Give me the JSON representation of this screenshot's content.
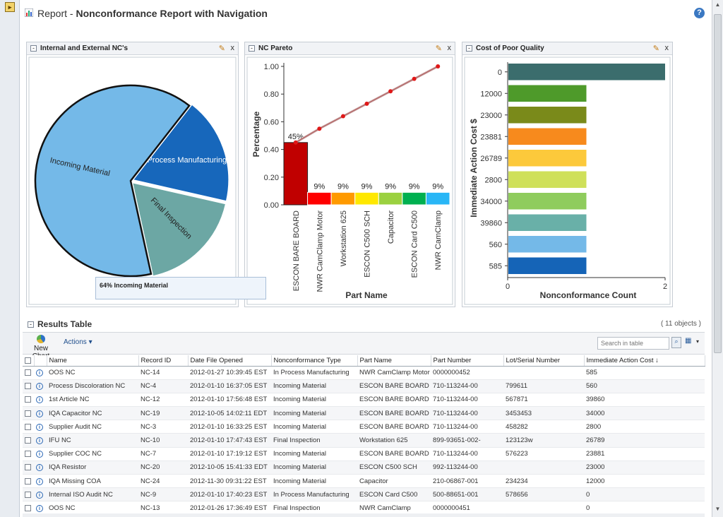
{
  "page": {
    "title_prefix": "Report - ",
    "title_main": "Nonconformance Report with Navigation",
    "help_glyph": "?"
  },
  "panels": {
    "pie": {
      "title": "Internal and External NC's",
      "tooltip": "64% Incoming Material"
    },
    "pareto": {
      "title": "NC Pareto"
    },
    "cost": {
      "title": "Cost of Poor Quality"
    },
    "edit_glyph": "✎",
    "close_glyph": "x"
  },
  "chart_data": [
    {
      "type": "pie",
      "title": "Internal and External NC's",
      "slices": [
        {
          "label": "Incoming Material",
          "value": 64,
          "color": "#74b9e8"
        },
        {
          "label": "In Process Manufacturing",
          "value": 18,
          "color": "#1767bb"
        },
        {
          "label": "Final Inspection",
          "value": 18,
          "color": "#6ca7a4"
        }
      ]
    },
    {
      "type": "bar",
      "title": "NC Pareto",
      "xlabel": "Part Name",
      "ylabel": "Percentage",
      "ylim": [
        0,
        1.0
      ],
      "yticks": [
        "0.00",
        "0.20",
        "0.40",
        "0.60",
        "0.80",
        "1.00"
      ],
      "categories": [
        "ESCON BARE BOARD",
        "NWR CamClamp Motor",
        "Workstation 625",
        "ESCON C500 SCH",
        "Capacitor",
        "ESCON Card C500",
        "NWR CamClamp"
      ],
      "values": [
        0.45,
        0.09,
        0.09,
        0.09,
        0.09,
        0.09,
        0.09
      ],
      "data_labels": [
        "45%",
        "9%",
        "9%",
        "9%",
        "9%",
        "9%",
        "9%"
      ],
      "colors": [
        "#c00000",
        "#ff0000",
        "#ff9a00",
        "#ffe800",
        "#9bd140",
        "#00b050",
        "#29b6f6"
      ],
      "cumulative": [
        0.45,
        0.55,
        0.64,
        0.73,
        0.82,
        0.91,
        1.0
      ]
    },
    {
      "type": "bar",
      "orientation": "horizontal",
      "title": "Cost of Poor Quality",
      "xlabel": "Nonconformance Count",
      "ylabel": "Immediate Action Cost $",
      "xlim": [
        0,
        2
      ],
      "xticks": [
        "0",
        "2"
      ],
      "categories": [
        "0",
        "12000",
        "23000",
        "23881",
        "26789",
        "2800",
        "34000",
        "39860",
        "560",
        "585"
      ],
      "values": [
        2,
        1,
        1,
        1,
        1,
        1,
        1,
        1,
        1,
        1
      ],
      "colors": [
        "#3b6d6d",
        "#4e9a2a",
        "#7a8a1a",
        "#f78a1d",
        "#fcc93b",
        "#cfe05a",
        "#8fcc5d",
        "#69b0a8",
        "#74b9e8",
        "#1564b7"
      ]
    }
  ],
  "results": {
    "title": "Results Table",
    "count": "( 11 objects )",
    "new_chart": "New Chart",
    "actions": "Actions ▾",
    "search_placeholder": "Search in table",
    "columns": [
      "Name",
      "Record ID",
      "Date File Opened",
      "Nonconformance Type",
      "Part Name",
      "Part Number",
      "Lot/Serial Number",
      "Immediate Action Cost ↓"
    ],
    "rows": [
      [
        "OOS NC",
        "NC-14",
        "2012-01-27 10:39:45 EST",
        "In Process Manufacturing",
        "NWR CamClamp Motor",
        "0000000452",
        "",
        "585"
      ],
      [
        "Process Discoloration NC",
        "NC-4",
        "2012-01-10 16:37:05 EST",
        "Incoming Material",
        "ESCON BARE BOARD",
        "710-113244-00",
        "799611",
        "560"
      ],
      [
        "1st Article NC",
        "NC-12",
        "2012-01-10 17:56:48 EST",
        "Incoming Material",
        "ESCON BARE BOARD",
        "710-113244-00",
        "567871",
        "39860"
      ],
      [
        "IQA Capacitor NC",
        "NC-19",
        "2012-10-05 14:02:11 EDT",
        "Incoming Material",
        "ESCON BARE BOARD",
        "710-113244-00",
        "3453453",
        "34000"
      ],
      [
        "Supplier Audit NC",
        "NC-3",
        "2012-01-10 16:33:25 EST",
        "Incoming Material",
        "ESCON BARE BOARD",
        "710-113244-00",
        "458282",
        "2800"
      ],
      [
        "IFU NC",
        "NC-10",
        "2012-01-10 17:47:43 EST",
        "Final Inspection",
        "Workstation 625",
        "899-93651-002-",
        "123123w",
        "26789"
      ],
      [
        "Supplier COC NC",
        "NC-7",
        "2012-01-10 17:19:12 EST",
        "Incoming Material",
        "ESCON BARE BOARD",
        "710-113244-00",
        "576223",
        "23881"
      ],
      [
        "IQA Resistor",
        "NC-20",
        "2012-10-05 15:41:33 EDT",
        "Incoming Material",
        "ESCON C500 SCH",
        "992-113244-00",
        "",
        "23000"
      ],
      [
        "IQA Missing COA",
        "NC-24",
        "2012-11-30 09:31:22 EST",
        "Incoming Material",
        "Capacitor",
        "210-06867-001",
        "234234",
        "12000"
      ],
      [
        "Internal ISO Audit NC",
        "NC-9",
        "2012-01-10 17:40:23 EST",
        "In Process Manufacturing",
        "ESCON Card C500",
        "500-88651-001",
        "578656",
        "0"
      ],
      [
        "OOS NC",
        "NC-13",
        "2012-01-26 17:36:49 EST",
        "Final Inspection",
        "NWR CamClamp",
        "0000000451",
        "",
        "0"
      ]
    ]
  }
}
